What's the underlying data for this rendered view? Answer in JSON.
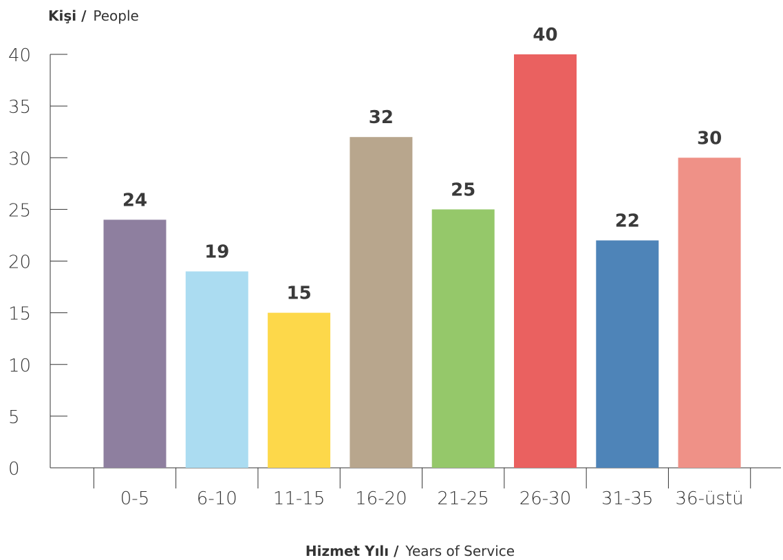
{
  "chart_data": {
    "type": "bar",
    "ylabel_bold": "Kişi /",
    "ylabel_light": "People",
    "xlabel_bold": "Hizmet Yılı /",
    "xlabel_light": "Years of Service",
    "categories": [
      "0-5",
      "6-10",
      "11-15",
      "16-20",
      "21-25",
      "26-30",
      "31-35",
      "36-üstü"
    ],
    "values": [
      24,
      19,
      15,
      32,
      25,
      40,
      22,
      30
    ],
    "colors": [
      "#8e7f9f",
      "#abdcf1",
      "#fdd84a",
      "#b8a68d",
      "#95c86a",
      "#ea6160",
      "#4e84b8",
      "#ef9187"
    ],
    "ylim": [
      0,
      40
    ],
    "yticks": [
      0,
      5,
      10,
      15,
      20,
      25,
      30,
      35,
      40
    ],
    "grid": false,
    "legend": "none"
  }
}
